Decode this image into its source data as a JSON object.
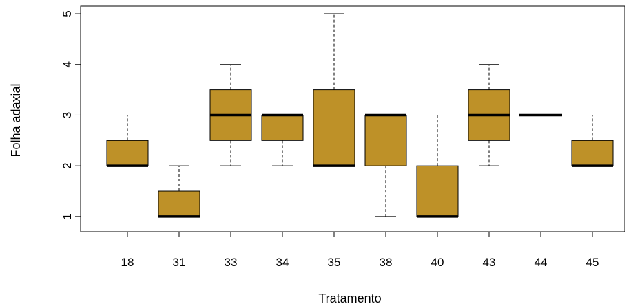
{
  "chart_data": {
    "type": "boxplot",
    "xlabel": "Tratamento",
    "ylabel": "Folha adaxial",
    "categories": [
      "18",
      "31",
      "33",
      "34",
      "35",
      "38",
      "40",
      "43",
      "44",
      "45"
    ],
    "boxes": [
      {
        "category": "18",
        "whisker_low": 2,
        "q1": 2,
        "median": 2,
        "q3": 2.5,
        "whisker_high": 3
      },
      {
        "category": "31",
        "whisker_low": 1,
        "q1": 1,
        "median": 1,
        "q3": 1.5,
        "whisker_high": 2
      },
      {
        "category": "33",
        "whisker_low": 2,
        "q1": 2.5,
        "median": 3,
        "q3": 3.5,
        "whisker_high": 4
      },
      {
        "category": "34",
        "whisker_low": 2,
        "q1": 2.5,
        "median": 3,
        "q3": 3,
        "whisker_high": 3
      },
      {
        "category": "35",
        "whisker_low": 2,
        "q1": 2,
        "median": 2,
        "q3": 3.5,
        "whisker_high": 5
      },
      {
        "category": "38",
        "whisker_low": 1,
        "q1": 2,
        "median": 3,
        "q3": 3,
        "whisker_high": 3
      },
      {
        "category": "40",
        "whisker_low": 1,
        "q1": 1,
        "median": 1,
        "q3": 2,
        "whisker_high": 3
      },
      {
        "category": "43",
        "whisker_low": 2,
        "q1": 2.5,
        "median": 3,
        "q3": 3.5,
        "whisker_high": 4
      },
      {
        "category": "44",
        "whisker_low": 3,
        "q1": 3,
        "median": 3,
        "q3": 3,
        "whisker_high": 3
      },
      {
        "category": "45",
        "whisker_low": 2,
        "q1": 2,
        "median": 2,
        "q3": 2.5,
        "whisker_high": 3
      }
    ],
    "yticks": [
      1,
      2,
      3,
      4,
      5
    ],
    "ylim": [
      0.7,
      5.15
    ],
    "grid": false,
    "colors": {
      "box_fill": "#be9128",
      "stroke": "#000000"
    }
  }
}
